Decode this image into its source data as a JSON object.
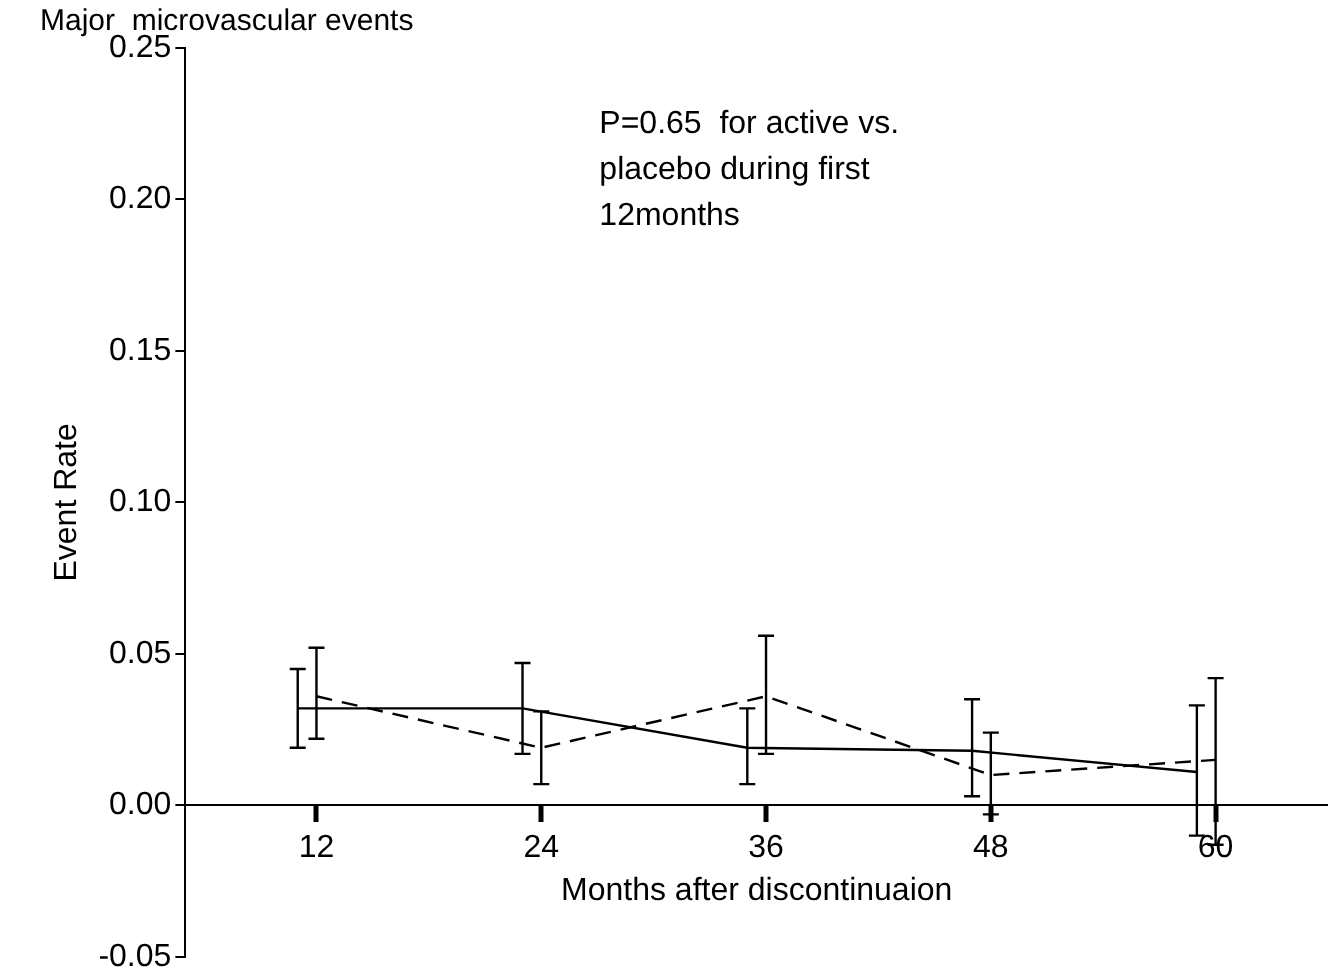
{
  "chart_data": {
    "type": "line",
    "title": "Major  microvascular events",
    "xlabel": "Months after discontinuaion",
    "ylabel": "Event Rate",
    "annotations": [
      "P=0.65  for active vs.\nplacebo during first\n12months"
    ],
    "xlim": [
      5,
      66
    ],
    "xticks": [
      12,
      24,
      36,
      48,
      60
    ],
    "ylim": [
      -0.05,
      0.25
    ],
    "yticks": [
      -0.05,
      {
        "value": 0,
        "label": "0.00"
      },
      0.05,
      {
        "value": 0.1,
        "label": "0.10"
      },
      0.15,
      {
        "value": 0.2,
        "label": "0.20"
      },
      0.25
    ],
    "grid": false,
    "legend": false,
    "marker": "none",
    "series": [
      {
        "color": "#000000",
        "line_style": "solid",
        "x": [
          11,
          23,
          35,
          47,
          59
        ],
        "values": [
          0.032,
          0.032,
          0.019,
          0.018,
          0.011
        ],
        "errors": [
          [
            0.019,
            0.045
          ],
          [
            0.017,
            0.047
          ],
          [
            0.007,
            0.032
          ],
          [
            0.003,
            0.035
          ],
          [
            -0.01,
            0.033
          ]
        ]
      },
      {
        "color": "#000000",
        "line_style": "dashed",
        "x": [
          12,
          24,
          36,
          48,
          60
        ],
        "values": [
          0.036,
          0.019,
          0.036,
          0.01,
          0.015
        ],
        "errors": [
          [
            0.022,
            0.052
          ],
          [
            0.007,
            0.031
          ],
          [
            0.017,
            0.056
          ],
          [
            -0.003,
            0.024
          ],
          [
            -0.013,
            0.042
          ]
        ]
      }
    ]
  }
}
